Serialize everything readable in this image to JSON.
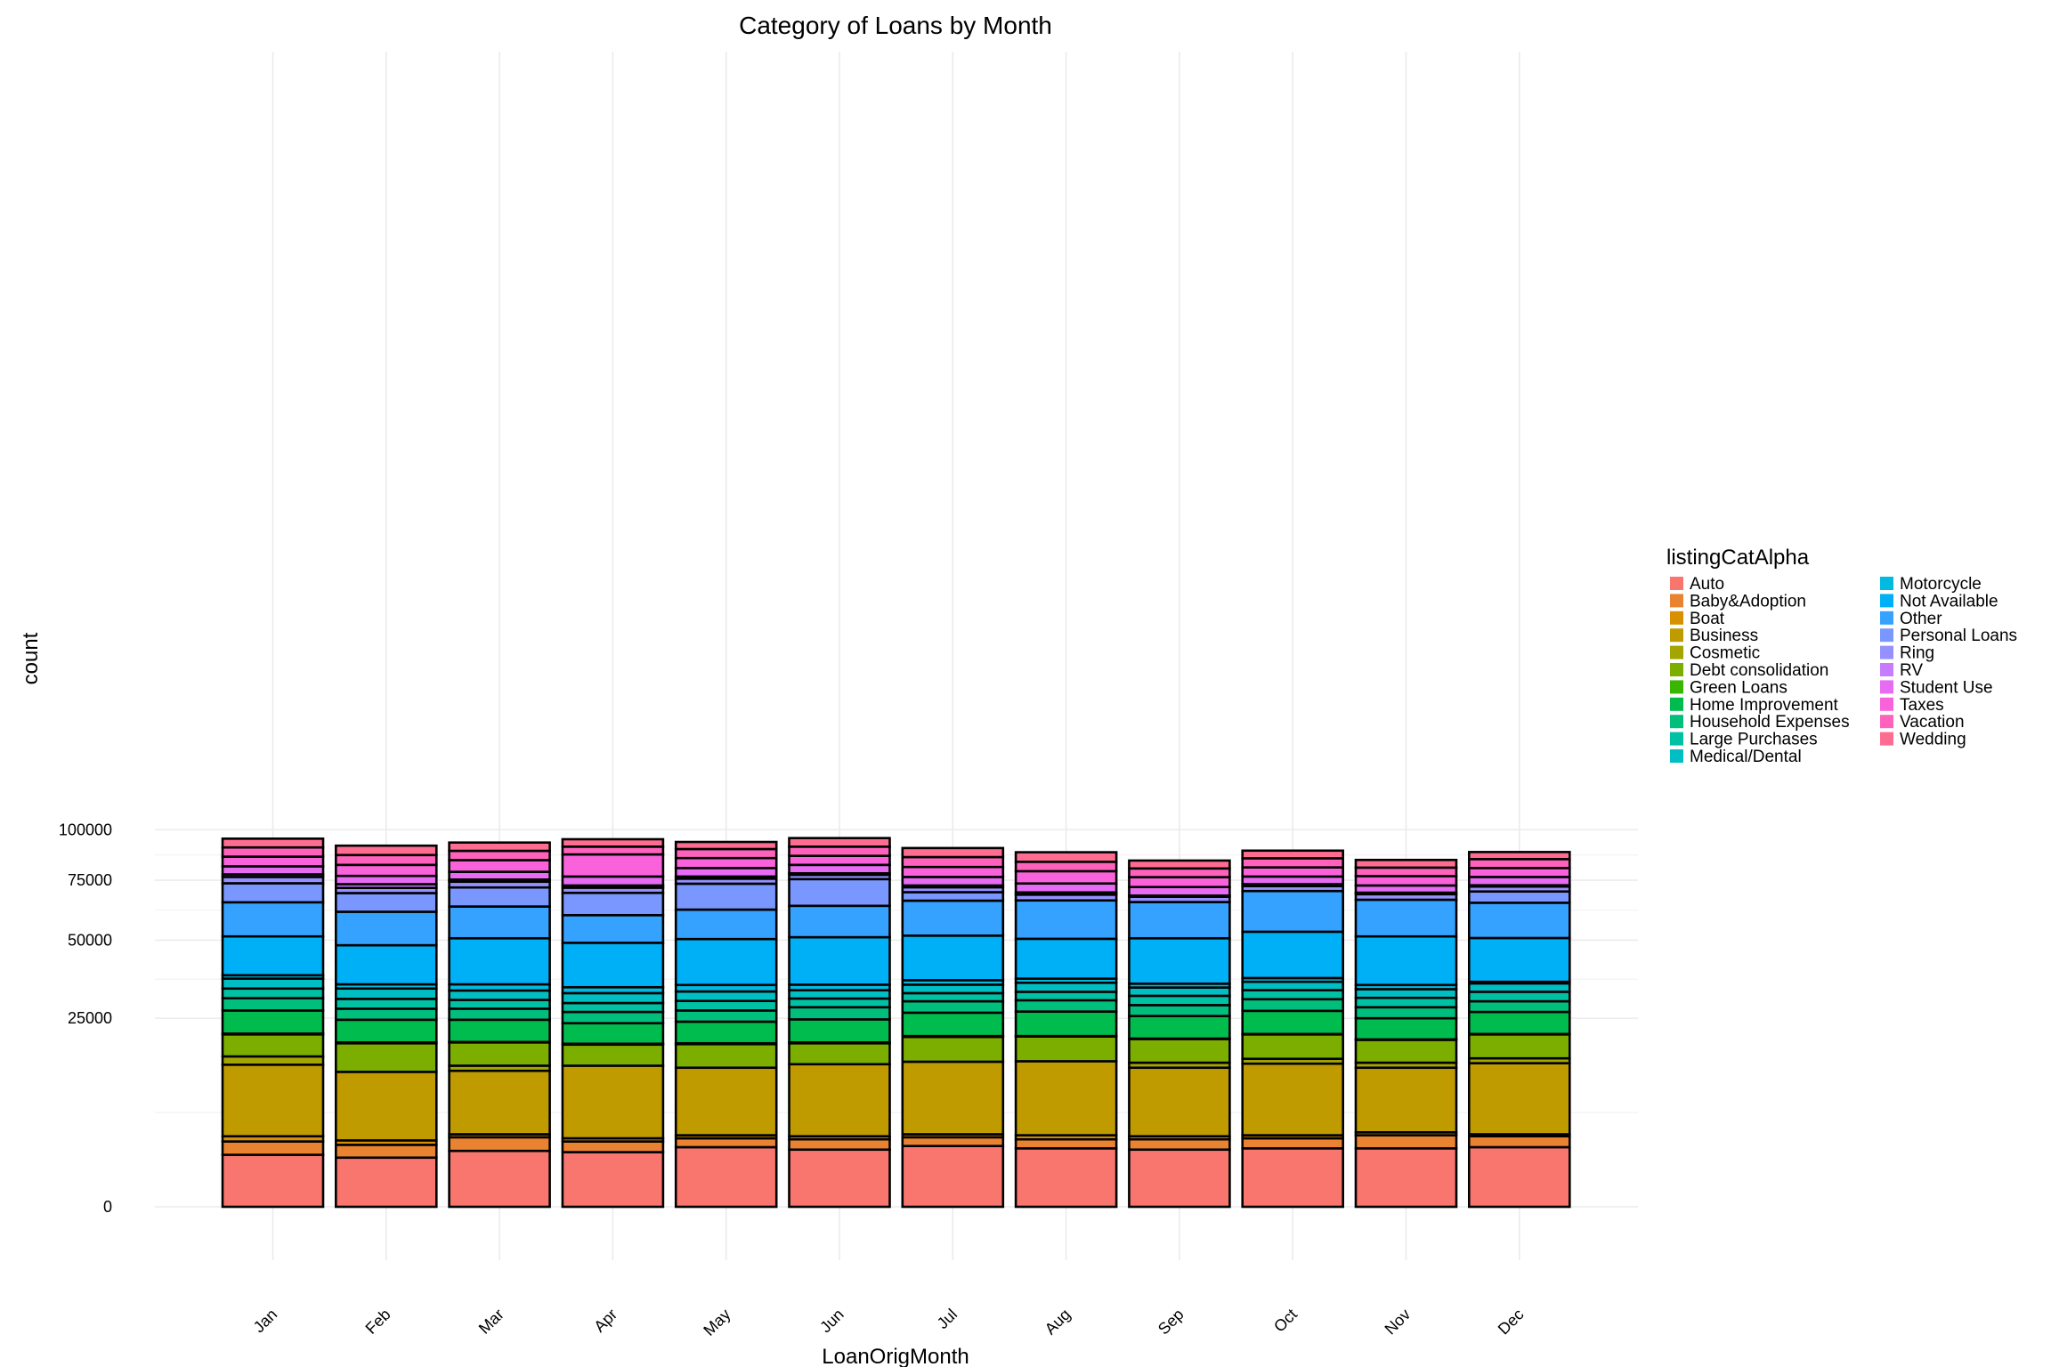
{
  "chart_data": {
    "type": "bar",
    "stacked": true,
    "title": "Category of Loans by Month",
    "xlabel": "LoanOrigMonth",
    "ylabel": "count",
    "y_scale": "sqrt",
    "ylim": [
      0,
      110000
    ],
    "y_ticks": [
      0,
      25000,
      50000,
      75000,
      100000
    ],
    "y_tick_labels": [
      "0",
      "25000",
      "50000",
      "75000",
      "100000"
    ],
    "grid": true,
    "legend_title": "listingCatAlpha",
    "legend_position": "right",
    "categories": [
      "Jan",
      "Feb",
      "Mar",
      "Apr",
      "May",
      "Jun",
      "Jul",
      "Aug",
      "Sep",
      "Oct",
      "Nov",
      "Dec"
    ],
    "series": [
      {
        "name": "Auto",
        "color": "#F8766D",
        "values": [
          1900,
          1700,
          2200,
          2100,
          2500,
          2300,
          2600,
          2400,
          2300,
          2400,
          2400,
          2500
        ]
      },
      {
        "name": "Baby&Adoption",
        "color": "#EA8331",
        "values": [
          1100,
          1000,
          1200,
          900,
          800,
          900,
          800,
          800,
          900,
          900,
          1200,
          1000
        ]
      },
      {
        "name": "Boat",
        "color": "#D89000",
        "values": [
          500,
          400,
          300,
          300,
          300,
          300,
          300,
          400,
          300,
          300,
          300,
          200
        ]
      },
      {
        "name": "Business",
        "color": "#C09B00",
        "values": [
          10700,
          9700,
          9300,
          10700,
          10000,
          10800,
          11100,
          11300,
          10100,
          10800,
          9700,
          10800
        ]
      },
      {
        "name": "Cosmetic",
        "color": "#A3A500",
        "values": [
          1700,
          0,
          1000,
          0,
          0,
          0,
          0,
          0,
          1000,
          1000,
          1000,
          1000
        ]
      },
      {
        "name": "Debt consolidation",
        "color": "#7CAE00",
        "values": [
          5000,
          6000,
          5000,
          4500,
          5000,
          4500,
          5500,
          5500,
          5200,
          5500,
          5000,
          5400
        ]
      },
      {
        "name": "Green Loans",
        "color": "#39B600",
        "values": [
          200,
          200,
          100,
          200,
          200,
          200,
          200,
          100,
          100,
          100,
          100,
          100
        ]
      },
      {
        "name": "Home Improvement",
        "color": "#00BB4E",
        "values": [
          6000,
          5600,
          5500,
          5000,
          5300,
          5700,
          6000,
          6300,
          5700,
          6000,
          5300,
          5700
        ]
      },
      {
        "name": "Household Expenses",
        "color": "#00BF7D",
        "values": [
          3500,
          3000,
          3000,
          3000,
          3000,
          3300,
          3200,
          3200,
          3000,
          3300,
          3000,
          3000
        ]
      },
      {
        "name": "Large Purchases",
        "color": "#00C1A3",
        "values": [
          2900,
          2800,
          2500,
          2500,
          2700,
          2500,
          2400,
          2500,
          2700,
          2700,
          2700,
          2800
        ]
      },
      {
        "name": "Medical/Dental",
        "color": "#00BFC4",
        "values": [
          3100,
          3100,
          2800,
          2900,
          2800,
          2500,
          2600,
          2800,
          2500,
          2600,
          2600,
          2600
        ]
      },
      {
        "name": "Motorcycle",
        "color": "#00BAE0",
        "values": [
          1100,
          1300,
          1900,
          1800,
          2000,
          1700,
          1400,
          1300,
          1200,
          1200,
          1300,
          500
        ]
      },
      {
        "name": "Not Available",
        "color": "#00B0F6",
        "values": [
          13700,
          13300,
          15900,
          15100,
          15800,
          16400,
          15600,
          13900,
          15700,
          16400,
          16800,
          15200
        ]
      },
      {
        "name": "Other",
        "color": "#35A2FF",
        "values": [
          13800,
          13100,
          12700,
          10800,
          11700,
          12600,
          14200,
          15500,
          14600,
          16900,
          14900,
          14200
        ]
      },
      {
        "name": "Personal Loans",
        "color": "#7997FF",
        "values": [
          8400,
          8000,
          8300,
          9500,
          11300,
          11800,
          3700,
          0,
          0,
          0,
          0,
          4900
        ]
      },
      {
        "name": "Ring",
        "color": "#9590FF",
        "values": [
          2900,
          2300,
          2600,
          2300,
          2300,
          2000,
          2200,
          2500,
          2300,
          2200,
          2400,
          2200
        ]
      },
      {
        "name": "RV",
        "color": "#C77CFF",
        "values": [
          1200,
          1700,
          1000,
          1000,
          1000,
          700,
          800,
          1000,
          500,
          900,
          700,
          600
        ]
      },
      {
        "name": "Student Use",
        "color": "#E76BF3",
        "values": [
          3800,
          3800,
          3600,
          4100,
          4000,
          4000,
          3900,
          4000,
          3800,
          3500,
          3200,
          3800
        ]
      },
      {
        "name": "Taxes",
        "color": "#FA62DB",
        "values": [
          4700,
          5200,
          5600,
          10600,
          4800,
          4400,
          4700,
          5700,
          4500,
          4300,
          4300,
          4200
        ]
      },
      {
        "name": "Vacation",
        "color": "#FF62BC",
        "values": [
          4600,
          4800,
          4600,
          3900,
          4500,
          4600,
          4800,
          4500,
          4100,
          4400,
          4000,
          4300
        ]
      },
      {
        "name": "Wedding",
        "color": "#FF6C91",
        "values": [
          4500,
          4700,
          4200,
          3800,
          3600,
          4400,
          4500,
          4700,
          3800,
          3800,
          3700,
          3500
        ]
      }
    ]
  }
}
